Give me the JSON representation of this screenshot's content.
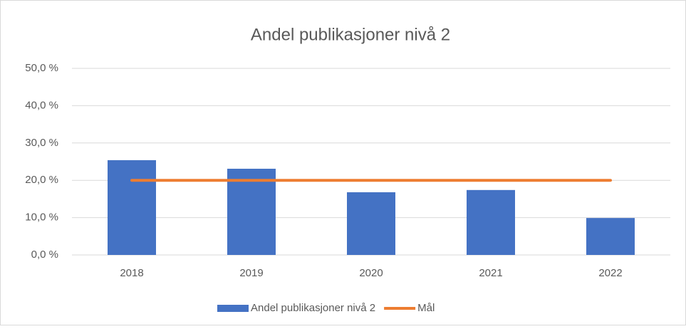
{
  "chart_data": {
    "type": "bar",
    "title": "Andel publikasjoner nivå 2",
    "categories": [
      "2018",
      "2019",
      "2020",
      "2021",
      "2022"
    ],
    "series": [
      {
        "name": "Andel publikasjoner nivå 2",
        "type": "bar",
        "color": "#4472c4",
        "values": [
          25.4,
          23.1,
          16.8,
          17.4,
          9.9
        ]
      },
      {
        "name": "Mål",
        "type": "line",
        "color": "#ed7d31",
        "values": [
          20,
          20,
          20,
          20,
          20
        ]
      }
    ],
    "ylim": [
      0,
      50
    ],
    "yticks": [
      {
        "value": 0,
        "label": "0,0 %"
      },
      {
        "value": 10,
        "label": "10,0 %"
      },
      {
        "value": 20,
        "label": "20,0 %"
      },
      {
        "value": 30,
        "label": "30,0 %"
      },
      {
        "value": 40,
        "label": "40,0 %"
      },
      {
        "value": 50,
        "label": "50,0 %"
      }
    ],
    "grid": true,
    "legend": "bottom"
  }
}
